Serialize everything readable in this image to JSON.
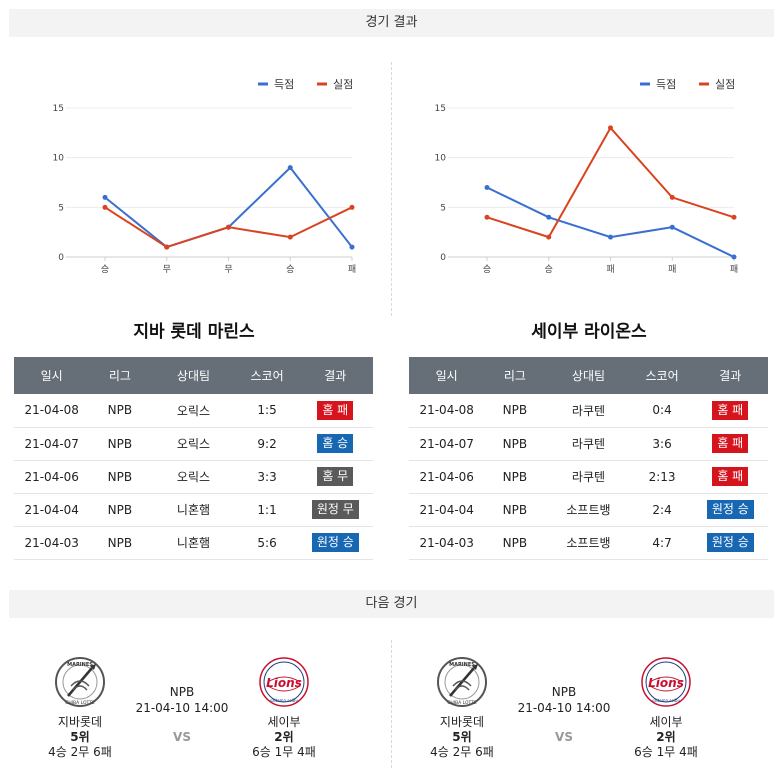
{
  "sections": {
    "results_title": "경기 결과",
    "next_title": "다음 경기"
  },
  "legend": {
    "scored": "득점",
    "allowed": "실점",
    "scored_color": "#3a6fd0",
    "allowed_color": "#d94420"
  },
  "chart_data": [
    {
      "type": "line",
      "categories": [
        "승",
        "무",
        "무",
        "승",
        "패"
      ],
      "series": [
        {
          "name": "득점",
          "values": [
            6,
            1,
            3,
            9,
            1
          ],
          "color": "#3a6fd0"
        },
        {
          "name": "실점",
          "values": [
            5,
            1,
            3,
            2,
            5
          ],
          "color": "#d94420"
        }
      ],
      "yticks": [
        0,
        5,
        10,
        15
      ],
      "ylim": [
        0,
        15
      ],
      "grid": true,
      "legend_position": "top-right"
    },
    {
      "type": "line",
      "categories": [
        "승",
        "승",
        "패",
        "패",
        "패"
      ],
      "series": [
        {
          "name": "득점",
          "values": [
            7,
            4,
            2,
            3,
            0
          ],
          "color": "#3a6fd0"
        },
        {
          "name": "실점",
          "values": [
            4,
            2,
            13,
            6,
            4
          ],
          "color": "#d94420"
        }
      ],
      "yticks": [
        0,
        5,
        10,
        15
      ],
      "ylim": [
        0,
        15
      ],
      "grid": true,
      "legend_position": "top-right"
    }
  ],
  "teams": {
    "left": {
      "title": "지바 롯데 마린스",
      "headers": [
        "일시",
        "리그",
        "상대팀",
        "스코어",
        "결과"
      ],
      "rows": [
        {
          "date": "21-04-08",
          "league": "NPB",
          "opponent": "오릭스",
          "score": "1:5",
          "result": "홈 패",
          "color": "#d6141e"
        },
        {
          "date": "21-04-07",
          "league": "NPB",
          "opponent": "오릭스",
          "score": "9:2",
          "result": "홈 승",
          "color": "#1767b3"
        },
        {
          "date": "21-04-06",
          "league": "NPB",
          "opponent": "오릭스",
          "score": "3:3",
          "result": "홈 무",
          "color": "#5a5a5a"
        },
        {
          "date": "21-04-04",
          "league": "NPB",
          "opponent": "니혼햄",
          "score": "1:1",
          "result": "원정 무",
          "color": "#5a5a5a"
        },
        {
          "date": "21-04-03",
          "league": "NPB",
          "opponent": "니혼햄",
          "score": "5:6",
          "result": "원정 승",
          "color": "#1767b3"
        }
      ]
    },
    "right": {
      "title": "세이부 라이온스",
      "headers": [
        "일시",
        "리그",
        "상대팀",
        "스코어",
        "결과"
      ],
      "rows": [
        {
          "date": "21-04-08",
          "league": "NPB",
          "opponent": "라쿠텐",
          "score": "0:4",
          "result": "홈 패",
          "color": "#d6141e"
        },
        {
          "date": "21-04-07",
          "league": "NPB",
          "opponent": "라쿠텐",
          "score": "3:6",
          "result": "홈 패",
          "color": "#d6141e"
        },
        {
          "date": "21-04-06",
          "league": "NPB",
          "opponent": "라쿠텐",
          "score": "2:13",
          "result": "홈 패",
          "color": "#d6141e"
        },
        {
          "date": "21-04-04",
          "league": "NPB",
          "opponent": "소프트뱅",
          "score": "2:4",
          "result": "원정 승",
          "color": "#1767b3"
        },
        {
          "date": "21-04-03",
          "league": "NPB",
          "opponent": "소프트뱅",
          "score": "4:7",
          "result": "원정 승",
          "color": "#1767b3"
        }
      ]
    }
  },
  "next_games": [
    {
      "home": {
        "name": "지바롯데",
        "rank": "5위",
        "record": "4승 2무 6패",
        "logo_text": "MARINES CHIBA LOTTE"
      },
      "league": "NPB",
      "datetime": "21-04-10 14:00",
      "vs": "VS",
      "away": {
        "name": "세이부",
        "rank": "2위",
        "record": "6승 1무 4패",
        "logo_text": "Lions"
      }
    },
    {
      "home": {
        "name": "지바롯데",
        "rank": "5위",
        "record": "4승 2무 6패",
        "logo_text": "MARINES CHIBA LOTTE"
      },
      "league": "NPB",
      "datetime": "21-04-10 14:00",
      "vs": "VS",
      "away": {
        "name": "세이부",
        "rank": "2위",
        "record": "6승 1무 4패",
        "logo_text": "Lions"
      }
    }
  ]
}
